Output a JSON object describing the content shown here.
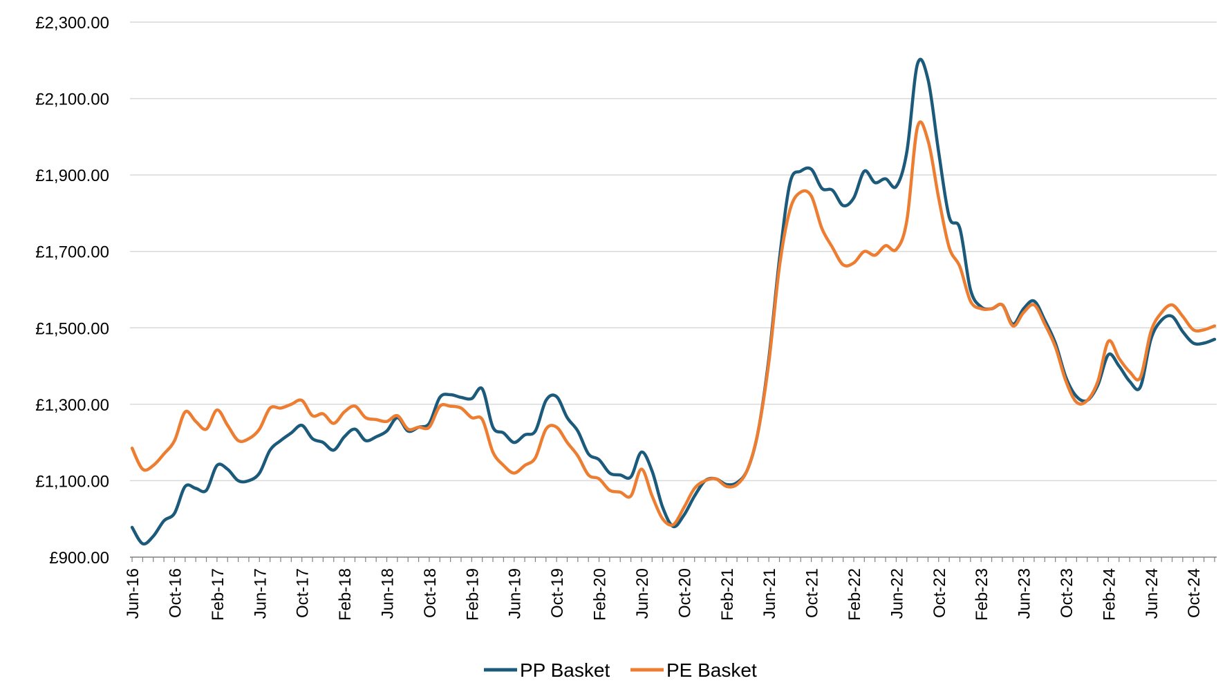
{
  "chart_data": {
    "type": "line",
    "title": "",
    "xlabel": "",
    "ylabel": "",
    "ylim": [
      900,
      2300
    ],
    "y_ticks": [
      900,
      1100,
      1300,
      1500,
      1700,
      1900,
      2100,
      2300
    ],
    "y_tick_labels": [
      "£900.00",
      "£1,100.00",
      "£1,300.00",
      "£1,500.00",
      "£1,700.00",
      "£1,900.00",
      "£2,100.00",
      "£2,300.00"
    ],
    "x_ticks": [
      "2016-06",
      "2016-10",
      "2017-02",
      "2017-06",
      "2017-10",
      "2018-02",
      "2018-06",
      "2018-10",
      "2019-02",
      "2019-06",
      "2019-10",
      "2020-02",
      "2020-06",
      "2020-10",
      "2021-02",
      "2021-06",
      "2021-10",
      "2022-02",
      "2022-06",
      "2022-10",
      "2023-02",
      "2023-06",
      "2023-10",
      "2024-02",
      "2024-06",
      "2024-10"
    ],
    "x_tick_labels": [
      "Jun-16",
      "Oct-16",
      "Feb-17",
      "Jun-17",
      "Oct-17",
      "Feb-18",
      "Jun-18",
      "Oct-18",
      "Feb-19",
      "Jun-19",
      "Oct-19",
      "Feb-20",
      "Jun-20",
      "Oct-20",
      "Feb-21",
      "Jun-21",
      "Oct-21",
      "Feb-22",
      "Jun-22",
      "Oct-22",
      "Feb-23",
      "Jun-23",
      "Oct-23",
      "Feb-24",
      "Jun-24",
      "Oct-24"
    ],
    "grid": "horizontal",
    "legend_position": "bottom",
    "colors": {
      "pp": "#1b5a7a",
      "pe": "#ed7d31",
      "grid": "#d9d9d9",
      "axis": "#808080"
    },
    "x": [
      "2016-06",
      "2016-07",
      "2016-08",
      "2016-09",
      "2016-10",
      "2016-11",
      "2016-12",
      "2017-01",
      "2017-02",
      "2017-03",
      "2017-04",
      "2017-05",
      "2017-06",
      "2017-07",
      "2017-08",
      "2017-09",
      "2017-10",
      "2017-11",
      "2017-12",
      "2018-01",
      "2018-02",
      "2018-03",
      "2018-04",
      "2018-05",
      "2018-06",
      "2018-07",
      "2018-08",
      "2018-09",
      "2018-10",
      "2018-11",
      "2018-12",
      "2019-01",
      "2019-02",
      "2019-03",
      "2019-04",
      "2019-05",
      "2019-06",
      "2019-07",
      "2019-08",
      "2019-09",
      "2019-10",
      "2019-11",
      "2019-12",
      "2020-01",
      "2020-02",
      "2020-03",
      "2020-04",
      "2020-05",
      "2020-06",
      "2020-07",
      "2020-08",
      "2020-09",
      "2020-10",
      "2020-11",
      "2020-12",
      "2021-01",
      "2021-02",
      "2021-03",
      "2021-04",
      "2021-05",
      "2021-06",
      "2021-07",
      "2021-08",
      "2021-09",
      "2021-10",
      "2021-11",
      "2021-12",
      "2022-01",
      "2022-02",
      "2022-03",
      "2022-04",
      "2022-05",
      "2022-06",
      "2022-07",
      "2022-08",
      "2022-09",
      "2022-10",
      "2022-11",
      "2022-12",
      "2023-01",
      "2023-02",
      "2023-03",
      "2023-04",
      "2023-05",
      "2023-06",
      "2023-07",
      "2023-08",
      "2023-09",
      "2023-10",
      "2023-11",
      "2023-12",
      "2024-01",
      "2024-02",
      "2024-03",
      "2024-04",
      "2024-05",
      "2024-06",
      "2024-07",
      "2024-08",
      "2024-09",
      "2024-10",
      "2024-11",
      "2024-12"
    ],
    "series": [
      {
        "name": "PP Basket",
        "color": "#1b5a7a",
        "values": [
          978,
          935,
          955,
          995,
          1015,
          1085,
          1080,
          1075,
          1140,
          1130,
          1100,
          1100,
          1120,
          1180,
          1205,
          1225,
          1245,
          1210,
          1200,
          1180,
          1215,
          1235,
          1205,
          1215,
          1230,
          1265,
          1230,
          1240,
          1250,
          1318,
          1325,
          1318,
          1315,
          1340,
          1240,
          1225,
          1200,
          1220,
          1230,
          1310,
          1320,
          1265,
          1230,
          1170,
          1155,
          1120,
          1115,
          1110,
          1175,
          1125,
          1030,
          980,
          1010,
          1060,
          1100,
          1105,
          1090,
          1095,
          1130,
          1230,
          1420,
          1680,
          1880,
          1910,
          1915,
          1865,
          1860,
          1820,
          1840,
          1910,
          1880,
          1890,
          1870,
          1960,
          2190,
          2150,
          1960,
          1790,
          1760,
          1600,
          1555,
          1550,
          1560,
          1510,
          1550,
          1570,
          1520,
          1460,
          1370,
          1320,
          1310,
          1350,
          1430,
          1400,
          1360,
          1345,
          1470,
          1520,
          1530,
          1490,
          1460,
          1460,
          1470
        ]
      },
      {
        "name": "PE Basket",
        "color": "#ed7d31",
        "values": [
          1185,
          1130,
          1140,
          1170,
          1205,
          1280,
          1255,
          1235,
          1285,
          1245,
          1205,
          1210,
          1235,
          1290,
          1290,
          1300,
          1310,
          1270,
          1275,
          1250,
          1280,
          1295,
          1265,
          1260,
          1255,
          1270,
          1235,
          1240,
          1240,
          1295,
          1295,
          1290,
          1265,
          1260,
          1175,
          1140,
          1120,
          1140,
          1160,
          1235,
          1240,
          1200,
          1165,
          1115,
          1105,
          1075,
          1070,
          1060,
          1130,
          1060,
          1000,
          985,
          1030,
          1080,
          1100,
          1105,
          1085,
          1090,
          1130,
          1230,
          1410,
          1660,
          1810,
          1855,
          1845,
          1760,
          1710,
          1665,
          1670,
          1700,
          1690,
          1715,
          1705,
          1780,
          2025,
          1990,
          1840,
          1710,
          1660,
          1570,
          1550,
          1550,
          1560,
          1505,
          1540,
          1560,
          1510,
          1450,
          1360,
          1305,
          1310,
          1360,
          1465,
          1420,
          1385,
          1370,
          1490,
          1540,
          1560,
          1530,
          1495,
          1495,
          1505
        ]
      }
    ]
  }
}
